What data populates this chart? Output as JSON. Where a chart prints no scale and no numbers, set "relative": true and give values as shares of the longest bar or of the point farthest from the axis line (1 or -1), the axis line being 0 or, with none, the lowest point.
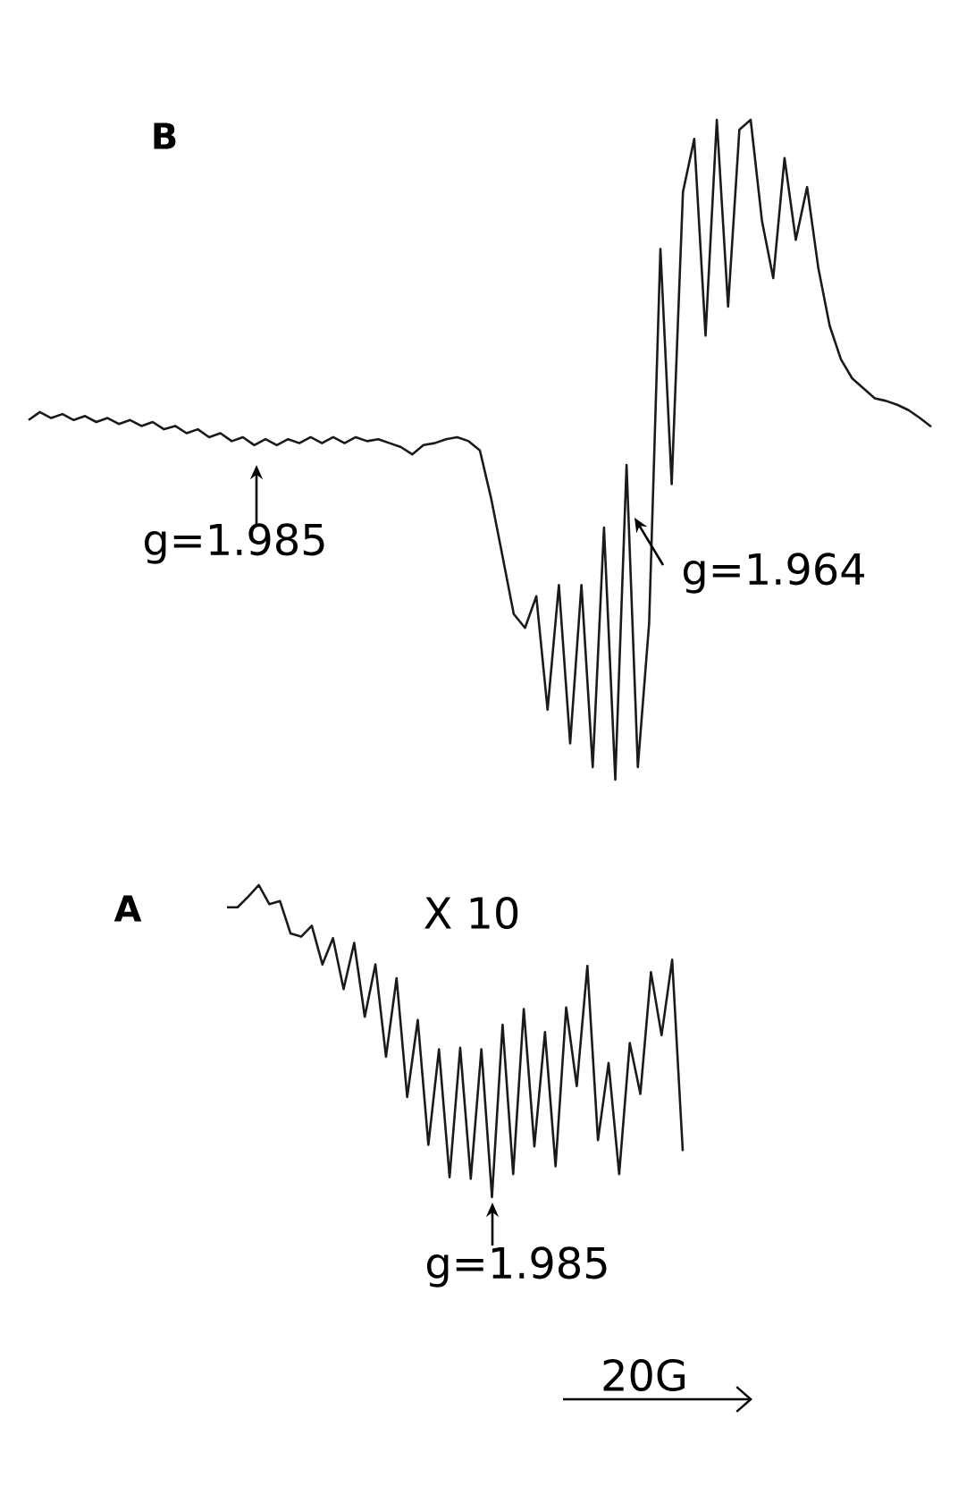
{
  "chart_data": [
    {
      "type": "line",
      "title": "B",
      "relative": true,
      "color": "#1a1a1a",
      "categories": [
        null,
        null,
        null,
        null,
        null,
        null,
        null,
        null,
        null,
        null,
        null,
        null,
        null,
        null,
        null,
        null,
        null,
        null,
        null,
        null,
        null,
        null,
        null,
        null,
        null,
        null,
        null,
        null,
        null,
        null,
        null,
        null,
        null,
        null,
        null,
        null,
        null,
        null,
        null,
        null,
        null,
        null,
        null,
        null,
        null,
        null,
        null,
        null,
        null,
        null,
        null,
        null,
        null,
        null,
        null,
        null,
        null,
        null,
        null,
        null,
        null,
        null,
        null,
        null,
        null,
        null,
        null,
        null,
        null,
        null,
        null,
        null,
        null,
        null,
        null,
        null,
        null,
        null,
        null,
        null,
        null
      ],
      "values": [
        0.545,
        0.557,
        0.548,
        0.554,
        0.545,
        0.551,
        0.542,
        0.548,
        0.539,
        0.545,
        0.536,
        0.542,
        0.531,
        0.536,
        0.525,
        0.531,
        0.519,
        0.525,
        0.513,
        0.519,
        0.507,
        0.516,
        0.507,
        0.516,
        0.51,
        0.519,
        0.51,
        0.519,
        0.51,
        0.519,
        0.513,
        0.516,
        0.51,
        0.504,
        0.493,
        0.507,
        0.51,
        0.516,
        0.519,
        0.513,
        0.499,
        0.426,
        0.339,
        0.251,
        0.23,
        0.278,
        0.106,
        0.295,
        0.055,
        0.295,
        0.019,
        0.382,
        0,
        0.477,
        0.019,
        0.237,
        0.804,
        0.448,
        0.891,
        0.971,
        0.673,
        1.0,
        0.717,
        0.985,
        1.0,
        0.847,
        0.76,
        0.942,
        0.818,
        0.898,
        0.775,
        0.688,
        0.637,
        0.608,
        0.593,
        0.578,
        0.574,
        0.568,
        0.56,
        0.548,
        0.535
      ],
      "annotations": [
        "g=1.985",
        "g=1.964"
      ]
    },
    {
      "type": "line",
      "title": "A",
      "relative": true,
      "color": "#1a1a1a",
      "categories": [
        null,
        null,
        null,
        null,
        null,
        null,
        null,
        null,
        null,
        null,
        null,
        null,
        null,
        null,
        null,
        null,
        null,
        null,
        null,
        null,
        null,
        null,
        null,
        null,
        null,
        null,
        null,
        null,
        null,
        null,
        null,
        null,
        null,
        null,
        null,
        null,
        null,
        null,
        null,
        null,
        null,
        null,
        null,
        null
      ],
      "values": [
        0.929,
        0.929,
        0.963,
        1.0,
        0.939,
        0.949,
        0.845,
        0.835,
        0.87,
        0.746,
        0.83,
        0.667,
        0.815,
        0.578,
        0.746,
        0.45,
        0.702,
        0.321,
        0.568,
        0.168,
        0.474,
        0.064,
        0.479,
        0.059,
        0.474,
        0,
        0.553,
        0.074,
        0.603,
        0.163,
        0.529,
        0.099,
        0.608,
        0.356,
        0.741,
        0.183,
        0.43,
        0.074,
        0.494,
        0.331,
        0.721,
        0.519,
        0.761,
        0.148
      ],
      "annotations": [
        "X 10",
        "g=1.985",
        "20G"
      ]
    }
  ]
}
